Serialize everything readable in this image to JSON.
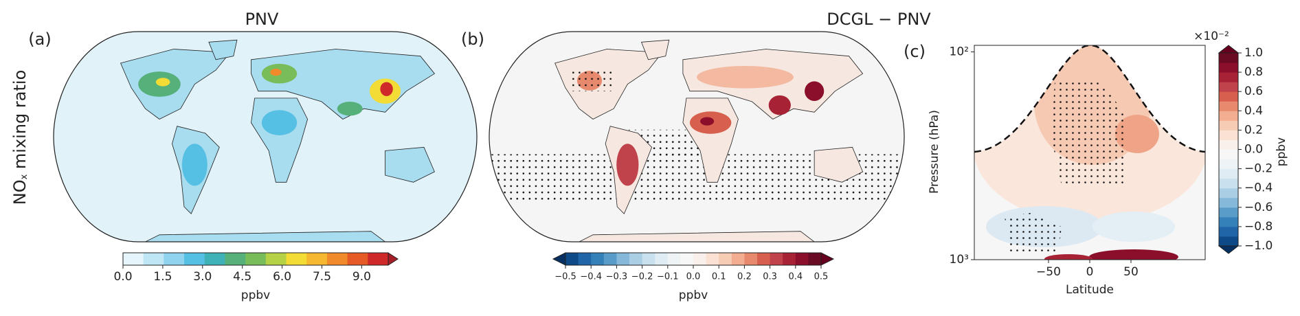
{
  "row_label": {
    "main": "NO",
    "sub": "x",
    "rest": " mixing ratio"
  },
  "panels": [
    {
      "label": "(a)",
      "title": "PNV",
      "colorbar": {
        "lim": [
          0,
          10
        ],
        "extend": "max",
        "unit": "ppbv",
        "ticks": [
          {
            "value": 0,
            "label": "0.0"
          },
          1.5,
          {
            "value": 3,
            "label": "3.0"
          },
          4.5,
          {
            "value": 6,
            "label": "6.0"
          },
          7.5,
          {
            "value": 9,
            "label": "9.0"
          }
        ],
        "colors": [
          "#e6f5fb",
          "#bfe6f5",
          "#8fd3ee",
          "#55c0e3",
          "#3fb2b8",
          "#56b07a",
          "#79bd5a",
          "#b5d146",
          "#f2dc35",
          "#f6b731",
          "#f18a2b",
          "#e65a25",
          "#d0292a",
          "#a51d27"
        ]
      }
    },
    {
      "label": "(b)",
      "title": "DCGL − PNV",
      "colorbar": {
        "lim": [
          -0.5,
          0.5
        ],
        "extend": "both",
        "unit": "ppbv",
        "ticks": [
          {
            "value": -0.5,
            "label": "−0.5"
          },
          {
            "value": -0.4,
            "label": "−0.4"
          },
          {
            "value": -0.3,
            "label": "−0.3"
          },
          {
            "value": -0.2,
            "label": "−0.2"
          },
          {
            "value": -0.1,
            "label": "−0.1"
          },
          {
            "value": 0,
            "label": "0.0"
          },
          0.1,
          0.2,
          0.3,
          0.4,
          0.5
        ],
        "colors": [
          "#053061",
          "#0d4a87",
          "#1f65a8",
          "#3480b9",
          "#5a9cc9",
          "#86b9d9",
          "#aacfe5",
          "#c9e0ee",
          "#dfecf4",
          "#eef3f6",
          "#f7f7f7",
          "#f9f0eb",
          "#fbe1d3",
          "#f7ccb5",
          "#f3ae91",
          "#e7896c",
          "#d6604d",
          "#c0424a",
          "#a82236",
          "#8b0f2b",
          "#6a0b23",
          "#67001f"
        ]
      }
    },
    {
      "label": "(c)",
      "xlabel": "Latitude",
      "ylabel": "Pressure (hPa)",
      "xlim": [
        -140,
        140
      ],
      "xticks": [
        {
          "value": -50,
          "label": "−50"
        },
        0,
        50
      ],
      "ylim": [
        1000,
        93
      ],
      "log_y": true,
      "yticks": [
        {
          "value": 100,
          "label": "10²"
        },
        {
          "value": 1000,
          "label": "10³"
        }
      ],
      "colorbar": {
        "lim": [
          -1,
          1
        ],
        "extend": "both",
        "unit": "ppbv",
        "multiplier": "×10⁻²",
        "ticks": [
          {
            "value": -1,
            "label": "−1.0"
          },
          {
            "value": -0.8,
            "label": "−0.8"
          },
          {
            "value": -0.6,
            "label": "−0.6"
          },
          {
            "value": -0.4,
            "label": "−0.4"
          },
          {
            "value": -0.2,
            "label": "−0.2"
          },
          {
            "value": 0,
            "label": "0.0"
          },
          0.2,
          0.4,
          0.6,
          0.8,
          {
            "value": 1,
            "label": "1.0"
          }
        ],
        "colors": [
          "#053061",
          "#0d4a87",
          "#1f65a8",
          "#3480b9",
          "#5a9cc9",
          "#86b9d9",
          "#aacfe5",
          "#c9e0ee",
          "#dfecf4",
          "#eef3f6",
          "#f7f7f7",
          "#f9f0eb",
          "#fbe1d3",
          "#f7ccb5",
          "#f3ae91",
          "#e7896c",
          "#d6604d",
          "#c0424a",
          "#a82236",
          "#8b0f2b",
          "#6a0b23",
          "#67001f"
        ]
      }
    }
  ]
}
